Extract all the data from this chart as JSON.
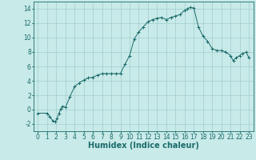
{
  "x": [
    0,
    1,
    1.3,
    1.6,
    1.9,
    2.1,
    2.3,
    2.5,
    2.7,
    3.0,
    3.5,
    4.0,
    4.5,
    5.0,
    5.5,
    6.0,
    6.5,
    7.0,
    7.5,
    8.0,
    8.5,
    9.0,
    9.5,
    10.0,
    10.5,
    11.0,
    11.5,
    12.0,
    12.5,
    13.0,
    13.5,
    14.0,
    14.5,
    15.0,
    15.5,
    16.0,
    16.3,
    16.6,
    17.0,
    17.5,
    18.0,
    18.5,
    19.0,
    19.5,
    20.0,
    20.5,
    21.0,
    21.3,
    21.6,
    22.0,
    22.3,
    22.7,
    23.0
  ],
  "y": [
    -0.5,
    -0.5,
    -1.0,
    -1.5,
    -1.7,
    -1.2,
    -0.5,
    0.1,
    0.5,
    0.3,
    1.8,
    3.2,
    3.7,
    4.1,
    4.4,
    4.5,
    4.8,
    5.0,
    5.0,
    5.0,
    5.0,
    5.0,
    6.3,
    7.5,
    9.8,
    10.8,
    11.5,
    12.2,
    12.5,
    12.7,
    12.8,
    12.5,
    12.8,
    13.0,
    13.2,
    13.8,
    14.0,
    14.2,
    14.1,
    11.5,
    10.2,
    9.5,
    8.5,
    8.2,
    8.2,
    8.0,
    7.5,
    6.8,
    7.2,
    7.5,
    7.8,
    8.0,
    7.2
  ],
  "line_color": "#1a6b6b",
  "marker": "+",
  "bg_color": "#c8eae8",
  "grid_color": "#a0cece",
  "xlabel": "Humidex (Indice chaleur)",
  "xlim": [
    -0.5,
    23.5
  ],
  "ylim": [
    -3.0,
    15.0
  ],
  "yticks": [
    -2,
    0,
    2,
    4,
    6,
    8,
    10,
    12,
    14
  ],
  "xticks": [
    0,
    1,
    2,
    3,
    4,
    5,
    6,
    7,
    8,
    9,
    10,
    11,
    12,
    13,
    14,
    15,
    16,
    17,
    18,
    19,
    20,
    21,
    22,
    23
  ],
  "tick_fontsize": 5.5,
  "xlabel_fontsize": 7
}
